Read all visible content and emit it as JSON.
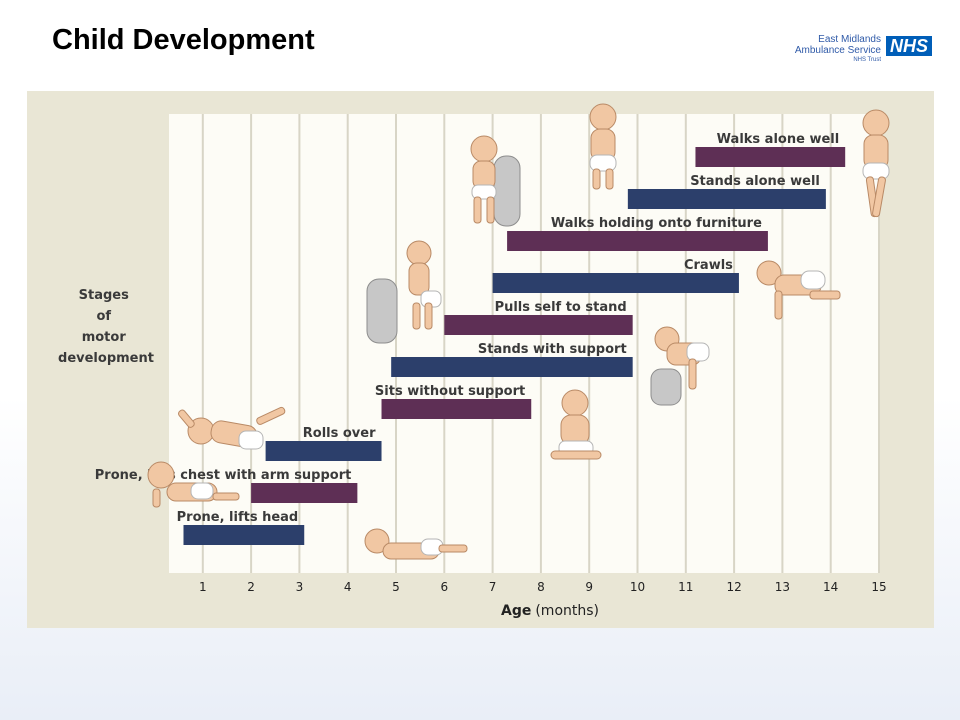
{
  "slide": {
    "title": "Child Development",
    "logo": {
      "line1": "East Midlands",
      "line2": "Ambulance Service",
      "line3": "NHS Trust",
      "badge": "NHS"
    }
  },
  "colors": {
    "background": "#e9e6d5",
    "plot_area": "#fdfcf6",
    "gridline": "#d8d5c6",
    "navy_bar": "#2c3f6b",
    "plum_bar": "#5e2f55",
    "brand_blue": "#005eb8"
  },
  "illustrations": [
    "baby-standing-by-pillar-icon",
    "baby-standing-icon",
    "baby-walking-icon",
    "baby-crawling-icon",
    "baby-pulling-up-icon",
    "baby-standing-with-support-icon",
    "baby-sitting-icon",
    "baby-rolling-icon",
    "baby-prone-chest-icon",
    "baby-prone-head-icon"
  ],
  "chart_data": {
    "type": "bar",
    "orientation": "horizontal-range",
    "ylabel": [
      "Stages",
      "of",
      "motor",
      "development"
    ],
    "xlabel_bold": "Age",
    "xlabel_unit": "(months)",
    "xlim": [
      0.3,
      15.0
    ],
    "xticks": [
      "1",
      "2",
      "3",
      "4",
      "5",
      "6",
      "7",
      "8",
      "9",
      "10",
      "11",
      "12",
      "13",
      "14",
      "15"
    ],
    "grid": true,
    "series": [
      {
        "label": "Walks alone well",
        "start": 11.2,
        "end": 14.3,
        "color": "plum"
      },
      {
        "label": "Stands alone well",
        "start": 9.8,
        "end": 13.9,
        "color": "navy"
      },
      {
        "label": "Walks holding onto furniture",
        "start": 7.3,
        "end": 12.7,
        "color": "plum"
      },
      {
        "label": "Crawls",
        "start": 7.0,
        "end": 12.1,
        "color": "navy"
      },
      {
        "label": "Pulls self to stand",
        "start": 6.0,
        "end": 9.9,
        "color": "plum"
      },
      {
        "label": "Stands with support",
        "start": 4.9,
        "end": 9.9,
        "color": "navy"
      },
      {
        "label": "Sits without support",
        "start": 4.7,
        "end": 7.8,
        "color": "plum"
      },
      {
        "label": "Rolls over",
        "start": 2.3,
        "end": 4.7,
        "color": "navy"
      },
      {
        "label": "Prone, lifts chest with arm support",
        "start": 2.0,
        "end": 4.2,
        "color": "plum"
      },
      {
        "label": "Prone, lifts head",
        "start": 0.6,
        "end": 3.1,
        "color": "navy"
      }
    ]
  }
}
